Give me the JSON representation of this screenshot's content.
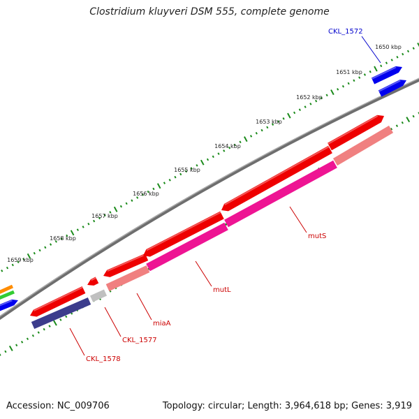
{
  "title": "Clostridium kluyveri DSM 555, complete genome",
  "footer": {
    "accession": "Accession: NC_009706",
    "summary": "Topology: circular; Length: 3,964,618 bp; Genes: 3,919"
  },
  "ticks": [
    "1650 kbp",
    "1651 kbp",
    "1652 kbp",
    "1653 kbp",
    "1654 kbp",
    "1655 kbp",
    "1656 kbp",
    "1657 kbp",
    "1658 kbp",
    "1659 kbp"
  ],
  "gene_labels": [
    {
      "id": "ckl1572",
      "text": "CKL_1572",
      "color": "#0000cc"
    },
    {
      "id": "muts",
      "text": "mutS",
      "color": "#cc0000"
    },
    {
      "id": "mutl",
      "text": "mutL",
      "color": "#cc0000"
    },
    {
      "id": "miaa",
      "text": "miaA",
      "color": "#cc0000"
    },
    {
      "id": "ckl1577",
      "text": "CKL_1577",
      "color": "#cc0000"
    },
    {
      "id": "ckl1578",
      "text": "CKL_1578",
      "color": "#cc0000"
    }
  ],
  "colors": {
    "backbone": "#808080",
    "tick": "#1a8a1a",
    "cds_red": "#ee0000",
    "cds_blue": "#0000ee",
    "gene_salmon": "#f08080",
    "gene_pink": "#ee1493",
    "gene_navy": "#3c3c8c",
    "gene_grey": "#c0c0c0",
    "gene_orange": "#ff8c00",
    "gene_green": "#33cc33"
  }
}
